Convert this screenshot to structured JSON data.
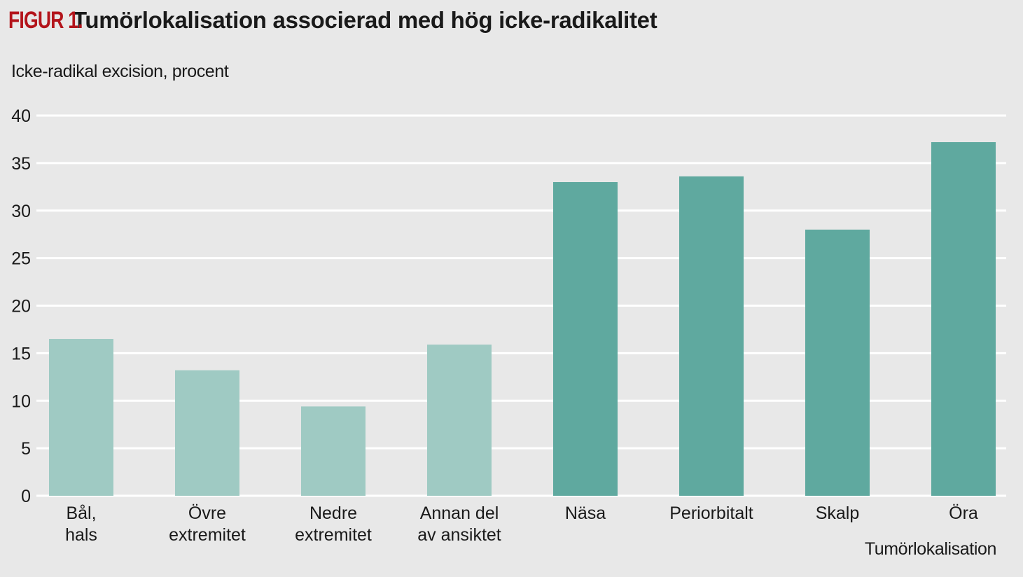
{
  "header": {
    "figure_label": "FIGUR 1.",
    "title": "Tumörlokalisation associerad med hög icke-radikalitet"
  },
  "colors": {
    "background": "#e8e8e8",
    "figure_label": "#b3141b",
    "bar_light": "#9fcac3",
    "bar_dark": "#5fa99f",
    "gridline": "#ffffff"
  },
  "chart_data": {
    "type": "bar",
    "title": "Tumörlokalisation associerad med hög icke-radikalitet",
    "ylabel": "Icke-radikal excision, procent",
    "xlabel": "Tumörlokalisation",
    "ylim": [
      0,
      40
    ],
    "yticks": [
      0,
      5,
      10,
      15,
      20,
      25,
      30,
      35,
      40
    ],
    "grid": true,
    "categories": [
      [
        "Bål,",
        "hals"
      ],
      [
        "Övre",
        "extremitet"
      ],
      [
        "Nedre",
        "extremitet"
      ],
      [
        "Annan del",
        "av ansiktet"
      ],
      [
        "Näsa"
      ],
      [
        "Periorbitalt"
      ],
      [
        "Skalp"
      ],
      [
        "Öra"
      ]
    ],
    "values": [
      16.5,
      13.2,
      9.4,
      15.9,
      33.0,
      33.6,
      28.0,
      37.2
    ],
    "bar_color_group": [
      "light",
      "light",
      "light",
      "light",
      "dark",
      "dark",
      "dark",
      "dark"
    ]
  }
}
